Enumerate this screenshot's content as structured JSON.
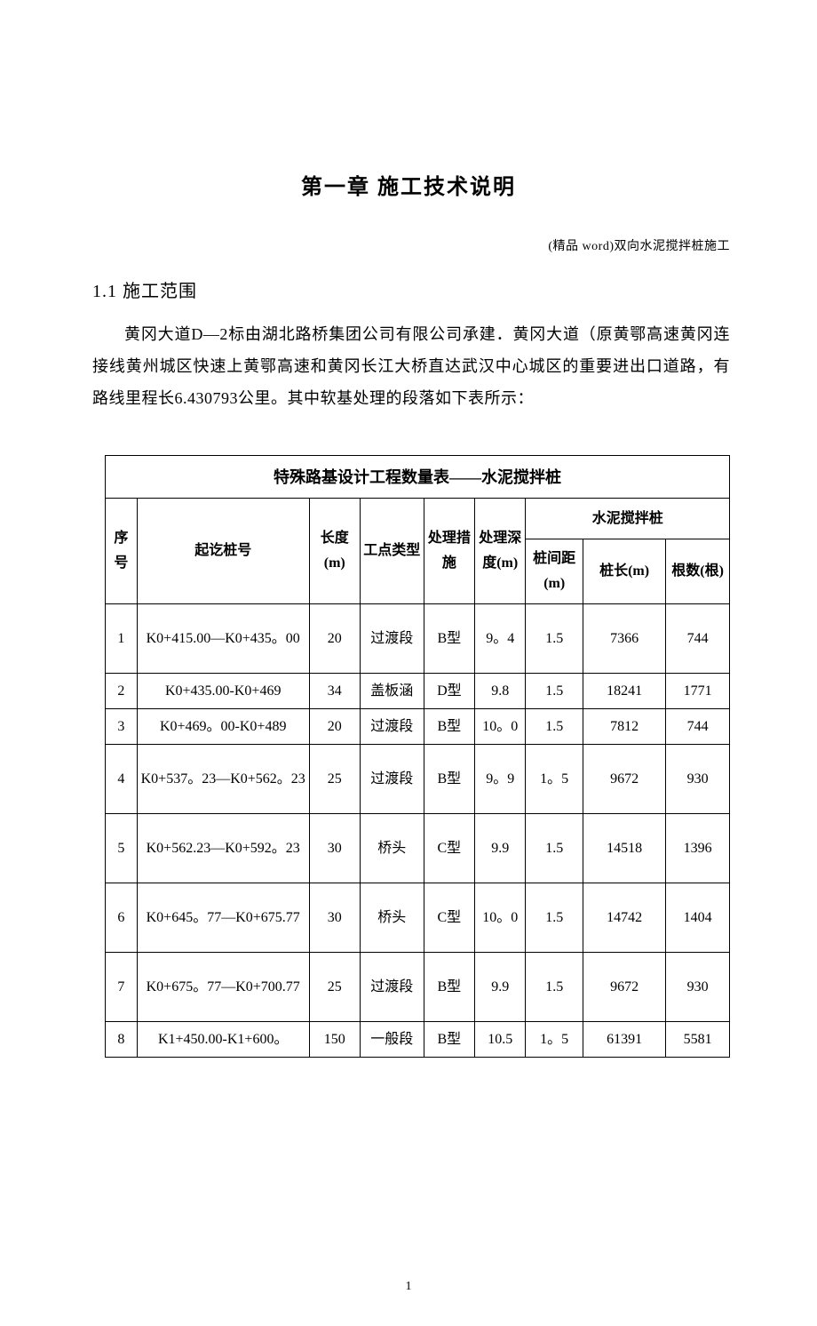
{
  "header_note": "(精品 word)双向水泥搅拌桩施工",
  "chapter_title": "第一章  施工技术说明",
  "section_1_1": "1.1  施工范围",
  "paragraph_1": "黄冈大道D—2标由湖北路桥集团公司有限公司承建．黄冈大道（原黄鄂高速黄冈连接线黄州城区快速上黄鄂高速和黄冈长江大桥直达武汉中心城区的重要进出口道路，有路线里程长6.430793公里。其中软基处理的段落如下表所示：",
  "table": {
    "title": "特殊路基设计工程数量表——水泥搅拌桩",
    "header_group": "水泥搅拌桩",
    "columns": {
      "seq": "序号",
      "station": "起讫桩号",
      "length": "长度(m)",
      "type": "工点类型",
      "measure": "处理措施",
      "depth": "处理深度(m)",
      "spacing": "桩间距(m)",
      "pilelen": "桩长(m)",
      "count": "根数(根)"
    },
    "rows": [
      {
        "seq": "1",
        "station": "K0+415.00—K0+435。00",
        "length": "20",
        "type": "过渡段",
        "measure": "B型",
        "depth": "9。4",
        "spacing": "1.5",
        "pilelen": "7366",
        "count": "744",
        "tall": true
      },
      {
        "seq": "2",
        "station": "K0+435.00-K0+469",
        "length": "34",
        "type": "盖板涵",
        "measure": "D型",
        "depth": "9.8",
        "spacing": "1.5",
        "pilelen": "18241",
        "count": "1771",
        "tall": false
      },
      {
        "seq": "3",
        "station": "K0+469。00-K0+489",
        "length": "20",
        "type": "过渡段",
        "measure": "B型",
        "depth": "10。0",
        "spacing": "1.5",
        "pilelen": "7812",
        "count": "744",
        "tall": false
      },
      {
        "seq": "4",
        "station": "K0+537。23—K0+562。23",
        "length": "25",
        "type": "过渡段",
        "measure": "B型",
        "depth": "9。9",
        "spacing": "1。5",
        "pilelen": "9672",
        "count": "930",
        "tall": true
      },
      {
        "seq": "5",
        "station": "K0+562.23—K0+592。23",
        "length": "30",
        "type": "桥头",
        "measure": "C型",
        "depth": "9.9",
        "spacing": "1.5",
        "pilelen": "14518",
        "count": "1396",
        "tall": true
      },
      {
        "seq": "6",
        "station": "K0+645。77—K0+675.77",
        "length": "30",
        "type": "桥头",
        "measure": "C型",
        "depth": "10。0",
        "spacing": "1.5",
        "pilelen": "14742",
        "count": "1404",
        "tall": true
      },
      {
        "seq": "7",
        "station": "K0+675。77—K0+700.77",
        "length": "25",
        "type": "过渡段",
        "measure": "B型",
        "depth": "9.9",
        "spacing": "1.5",
        "pilelen": "9672",
        "count": "930",
        "tall": true
      },
      {
        "seq": "8",
        "station": "K1+450.00-K1+600。",
        "length": "150",
        "type": "一般段",
        "measure": "B型",
        "depth": "10.5",
        "spacing": "1。5",
        "pilelen": "61391",
        "count": "5581",
        "tall": false
      }
    ]
  },
  "page_number": "1"
}
